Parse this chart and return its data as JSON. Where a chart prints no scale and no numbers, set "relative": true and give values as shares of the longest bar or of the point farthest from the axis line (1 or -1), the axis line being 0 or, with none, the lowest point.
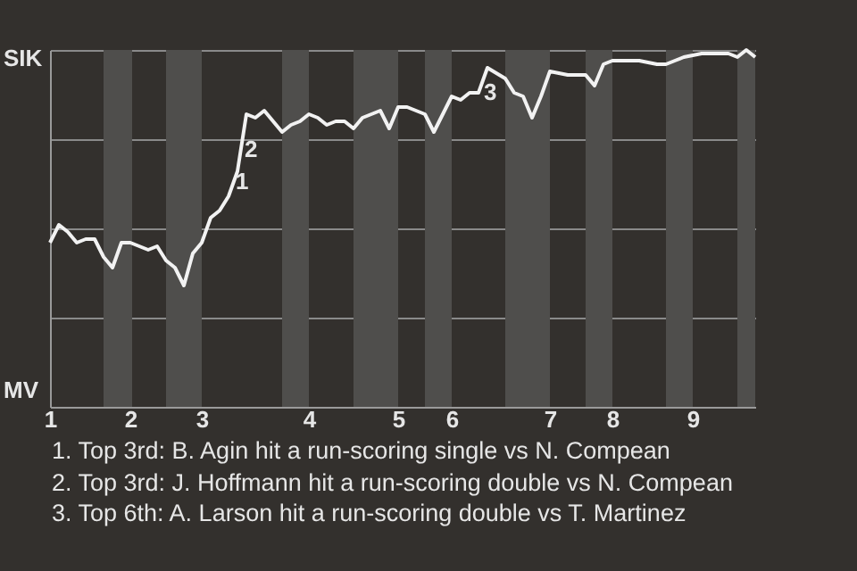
{
  "chart_data": {
    "type": "line",
    "relative": true,
    "grid": "y",
    "marker": "none",
    "line_style": "solid",
    "categories": [
      "1",
      null,
      null,
      null,
      null,
      null,
      null,
      null,
      null,
      "2",
      null,
      null,
      null,
      null,
      null,
      null,
      null,
      "3",
      null,
      null,
      null,
      null,
      null,
      null,
      null,
      null,
      null,
      null,
      null,
      "4",
      null,
      null,
      null,
      null,
      null,
      null,
      null,
      null,
      null,
      "5",
      null,
      null,
      null,
      null,
      null,
      "6",
      null,
      null,
      null,
      null,
      null,
      null,
      null,
      null,
      null,
      null,
      "7",
      null,
      null,
      null,
      null,
      null,
      null,
      "8",
      null,
      null,
      null,
      null,
      null,
      null,
      null,
      null,
      "9",
      null,
      null,
      null,
      null,
      null,
      null,
      null
    ],
    "series": [
      {
        "color": "#f2f2f2",
        "values": [
          0.46,
          0.51,
          0.49,
          0.46,
          0.47,
          0.47,
          0.42,
          0.39,
          0.46,
          0.46,
          0.45,
          0.44,
          0.45,
          0.41,
          0.39,
          0.34,
          0.43,
          0.46,
          0.53,
          0.55,
          0.59,
          0.66,
          0.82,
          0.81,
          0.83,
          0.8,
          0.77,
          0.79,
          0.8,
          0.82,
          0.81,
          0.79,
          0.8,
          0.8,
          0.78,
          0.81,
          0.82,
          0.83,
          0.78,
          0.84,
          0.84,
          0.83,
          0.82,
          0.77,
          0.82,
          0.87,
          0.86,
          0.88,
          0.88,
          0.95,
          0.935,
          0.92,
          0.88,
          0.87,
          0.81,
          0.87,
          0.94,
          0.935,
          0.93,
          0.93,
          0.93,
          0.9,
          0.96,
          0.97,
          0.97,
          0.97,
          0.97,
          0.965,
          0.96,
          0.96,
          0.97,
          0.98,
          0.985,
          0.99,
          0.99,
          0.99,
          0.99,
          0.98,
          1.0,
          0.98
        ]
      }
    ],
    "annotations": [
      "SIK",
      "MV",
      "1",
      "2",
      "3",
      "1. Top 3rd: B. Agin hit a run-scoring single vs N. Compean",
      "2. Top 3rd: J. Hoffmann hit a run-scoring double vs N. Compean",
      "3. Top 6th: A. Larson hit a run-scoring double vs T. Martinez"
    ]
  }
}
